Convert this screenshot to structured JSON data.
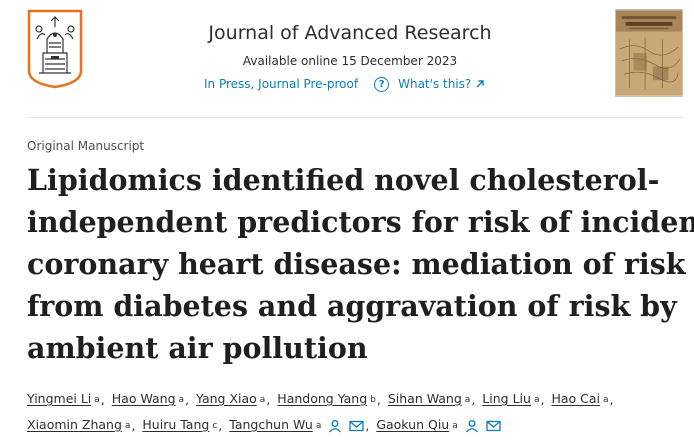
{
  "journal": {
    "title": "Journal of Advanced Research",
    "available": "Available online 15 December 2023",
    "status_link": "In Press, Journal Pre-proof",
    "help_link": "What's this?"
  },
  "article": {
    "type": "Original Manuscript",
    "title_lines": [
      "Lipidomics identified novel cholesterol-",
      "independent predictors for risk of incident",
      "coronary heart disease: mediation of risk",
      "from diabetes and aggravation of risk by",
      "ambient air pollution"
    ]
  },
  "authors_line1": [
    {
      "name": "Yingmei Li",
      "sup": "a"
    },
    {
      "name": "Hao Wang",
      "sup": "a"
    },
    {
      "name": "Yang Xiao",
      "sup": "a"
    },
    {
      "name": "Handong Yang",
      "sup": "b"
    },
    {
      "name": "Sihan Wang",
      "sup": "a"
    },
    {
      "name": "Ling Liu",
      "sup": "a"
    },
    {
      "name": "Hao Cai",
      "sup": "a"
    }
  ],
  "authors_line2": [
    {
      "name": "Xiaomin Zhang",
      "sup": "a"
    },
    {
      "name": "Huiru Tang",
      "sup": "c"
    },
    {
      "name": "Tangchun Wu",
      "sup": "a"
    },
    {
      "name": "Gaokun Qiu",
      "sup": "a"
    }
  ],
  "icons": {
    "logo": "elsevier-tree-logo",
    "cover": "journal-cover-thumbnail",
    "help": "question-circle-icon",
    "external": "arrow-up-right-icon",
    "person": "person-icon",
    "mail": "envelope-icon"
  },
  "colors": {
    "link": "#0c7dbb",
    "text": "#1f1f1f",
    "muted": "#505050",
    "logo": "#e9711c"
  }
}
